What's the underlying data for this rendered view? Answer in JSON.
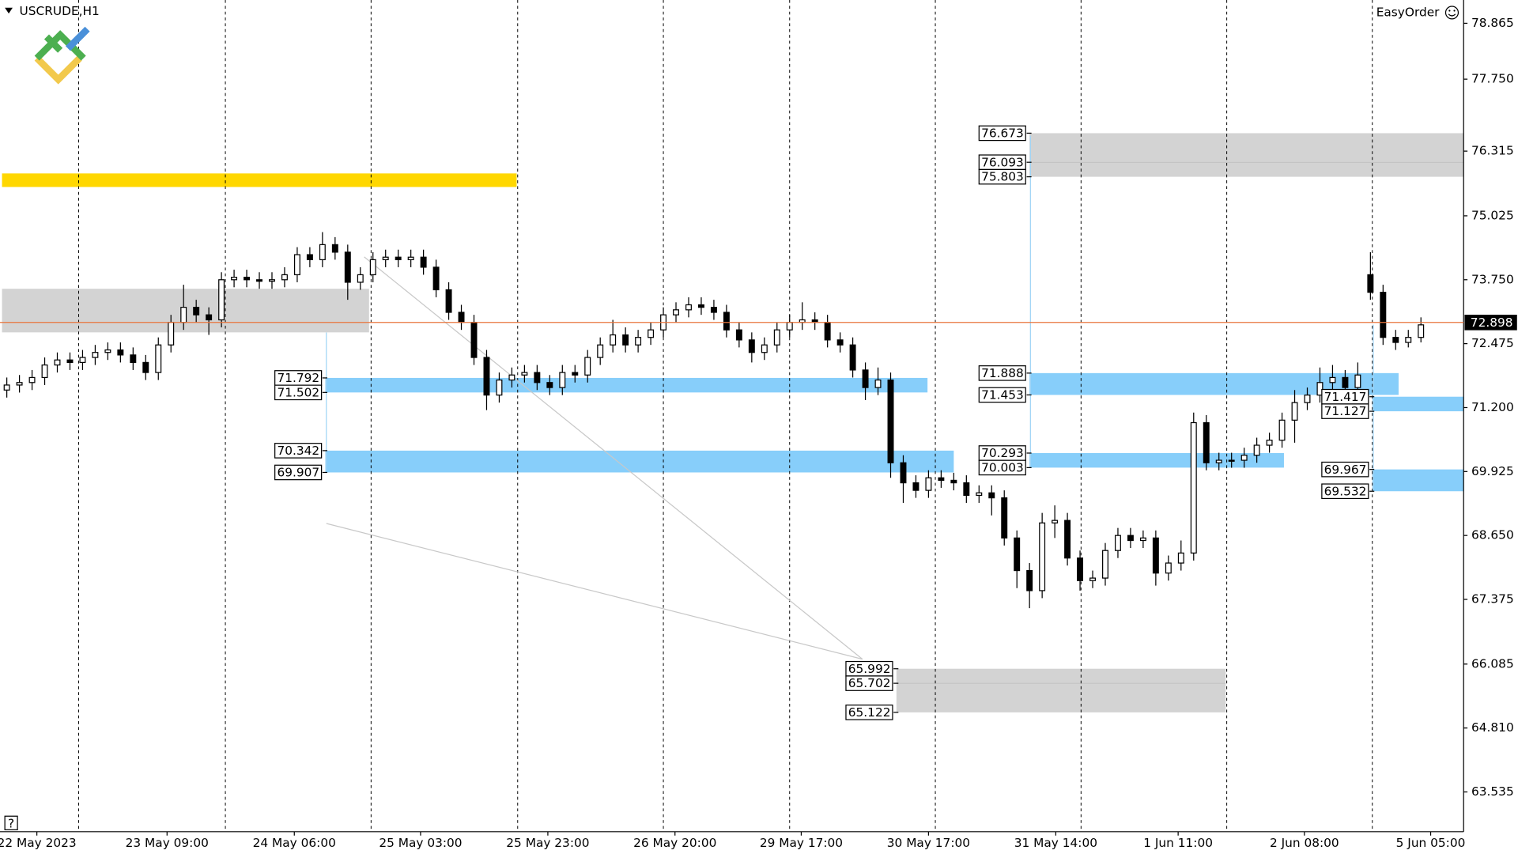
{
  "chart_data": {
    "type": "candlestick",
    "title": "USCRUDE,H1",
    "brand": "EasyOrder",
    "ylim": [
      62.742,
      79.329
    ],
    "yticks": [
      78.865,
      {
        "value": 77.75,
        "label": "77.750"
      },
      76.315,
      75.025,
      {
        "value": 73.75,
        "label": "73.750"
      },
      72.475,
      {
        "value": 71.2,
        "label": "71.200"
      },
      69.925,
      {
        "value": 68.65,
        "label": "68.650"
      },
      67.375,
      66.085,
      {
        "value": 64.81,
        "label": "64.810"
      },
      63.535
    ],
    "xlim": [
      -0.54,
      115.38
    ],
    "xticks": [
      {
        "value": 2.38,
        "label": "22 May 2023"
      },
      {
        "value": 12.69,
        "label": "23 May 09:00"
      },
      {
        "value": 22.77,
        "label": "24 May 06:00"
      },
      {
        "value": 32.77,
        "label": "25 May 03:00"
      },
      {
        "value": 42.85,
        "label": "25 May 23:00"
      },
      {
        "value": 52.92,
        "label": "26 May 20:00"
      },
      {
        "value": 62.92,
        "label": "29 May 17:00"
      },
      {
        "value": 73.0,
        "label": "30 May 17:00"
      },
      {
        "value": 83.08,
        "label": "31 May 14:00"
      },
      {
        "value": 92.77,
        "label": "1 Jun 11:00"
      },
      {
        "value": 102.77,
        "label": "2 Jun 08:00"
      },
      {
        "value": 112.77,
        "label": "5 Jun 05:00"
      }
    ],
    "day_separators": [
      5.69,
      17.31,
      28.85,
      40.46,
      52.0,
      62.0,
      73.54,
      85.08,
      96.62,
      108.15
    ],
    "x": [
      0,
      1,
      2,
      3,
      4,
      5,
      6,
      7,
      8,
      9,
      10,
      11,
      12,
      13,
      14,
      15,
      16,
      17,
      18,
      19,
      20,
      21,
      22,
      23,
      24,
      25,
      26,
      27,
      28,
      29,
      30,
      31,
      32,
      33,
      34,
      35,
      36,
      37,
      38,
      39,
      40,
      41,
      42,
      43,
      44,
      45,
      46,
      47,
      48,
      49,
      50,
      51,
      52,
      53,
      54,
      55,
      56,
      57,
      58,
      59,
      60,
      61,
      62,
      63,
      64,
      65,
      66,
      67,
      68,
      69,
      70,
      71,
      72,
      73,
      74,
      75,
      76,
      77,
      78,
      79,
      80,
      81,
      82,
      83,
      84,
      85,
      86,
      87,
      88,
      89,
      90,
      91,
      92,
      93,
      94,
      95,
      96,
      97,
      98,
      99,
      100,
      101,
      102,
      103,
      104,
      105,
      106,
      107,
      108,
      109,
      110,
      111,
      112
    ],
    "open": [
      71.55,
      71.65,
      71.7,
      71.8,
      72.05,
      72.15,
      72.1,
      72.2,
      72.3,
      72.35,
      72.25,
      72.1,
      71.9,
      72.45,
      72.9,
      73.2,
      73.05,
      72.95,
      73.75,
      73.8,
      73.75,
      73.72,
      73.75,
      73.85,
      74.25,
      74.15,
      74.45,
      74.3,
      73.7,
      73.85,
      74.15,
      74.2,
      74.15,
      74.2,
      74.0,
      73.55,
      73.1,
      72.9,
      72.2,
      71.45,
      71.75,
      71.85,
      71.9,
      71.7,
      71.6,
      71.9,
      71.85,
      72.2,
      72.45,
      72.65,
      72.45,
      72.6,
      72.75,
      73.05,
      73.15,
      73.25,
      73.2,
      73.1,
      72.75,
      72.55,
      72.3,
      72.45,
      72.75,
      72.9,
      72.95,
      72.9,
      72.55,
      72.45,
      71.95,
      71.6,
      71.75,
      70.1,
      69.7,
      69.55,
      69.8,
      69.75,
      69.7,
      69.45,
      69.5,
      69.4,
      68.6,
      67.95,
      67.55,
      68.9,
      68.95,
      68.2,
      67.75,
      67.8,
      68.35,
      68.65,
      68.55,
      68.6,
      67.9,
      68.1,
      68.3,
      70.9,
      70.1,
      70.15,
      70.15,
      70.25,
      70.45,
      70.55,
      70.95,
      71.3,
      71.45,
      71.7,
      71.8,
      71.6,
      73.85,
      73.5,
      72.6,
      72.5,
      72.6
    ],
    "high": [
      71.8,
      71.85,
      71.95,
      72.2,
      72.3,
      72.3,
      72.35,
      72.45,
      72.5,
      72.5,
      72.4,
      72.25,
      72.6,
      73.05,
      73.65,
      73.35,
      73.2,
      73.9,
      73.95,
      73.95,
      73.9,
      73.9,
      74.0,
      74.4,
      74.4,
      74.7,
      74.6,
      74.45,
      74.0,
      74.3,
      74.35,
      74.35,
      74.35,
      74.35,
      74.15,
      73.7,
      73.25,
      73.05,
      72.35,
      71.9,
      72.0,
      72.05,
      72.05,
      71.85,
      72.05,
      72.05,
      72.35,
      72.6,
      72.95,
      72.8,
      72.75,
      72.9,
      73.2,
      73.3,
      73.4,
      73.4,
      73.35,
      73.25,
      72.9,
      72.7,
      72.6,
      72.9,
      73.05,
      73.3,
      73.1,
      73.05,
      72.7,
      72.6,
      72.1,
      72.0,
      71.9,
      70.25,
      69.85,
      69.95,
      69.95,
      69.9,
      69.85,
      69.65,
      69.65,
      69.55,
      68.75,
      68.1,
      69.1,
      69.25,
      69.1,
      68.35,
      67.95,
      68.5,
      68.8,
      68.8,
      68.75,
      68.75,
      68.25,
      68.55,
      71.1,
      71.05,
      70.3,
      70.3,
      70.4,
      70.6,
      70.7,
      71.1,
      71.55,
      71.6,
      72.0,
      72.05,
      71.95,
      72.1,
      74.3,
      73.65,
      72.75,
      72.75,
      73.0
    ],
    "low": [
      71.4,
      71.5,
      71.55,
      71.65,
      71.9,
      71.95,
      71.95,
      72.05,
      72.15,
      72.1,
      71.95,
      71.75,
      71.75,
      72.3,
      72.75,
      72.9,
      72.65,
      72.8,
      73.6,
      73.6,
      73.57,
      73.57,
      73.6,
      73.7,
      74.0,
      74.0,
      74.15,
      73.35,
      73.55,
      73.7,
      74.0,
      74.0,
      74.0,
      73.85,
      73.4,
      72.95,
      72.75,
      72.05,
      71.15,
      71.3,
      71.6,
      71.7,
      71.55,
      71.45,
      71.45,
      71.7,
      71.7,
      72.05,
      72.3,
      72.3,
      72.3,
      72.45,
      72.6,
      72.9,
      73.0,
      73.05,
      72.95,
      72.6,
      72.4,
      72.1,
      72.15,
      72.3,
      72.6,
      72.75,
      72.75,
      72.4,
      72.3,
      71.8,
      71.35,
      71.45,
      69.8,
      69.3,
      69.4,
      69.4,
      69.6,
      69.55,
      69.3,
      69.3,
      69.05,
      68.45,
      67.6,
      67.2,
      67.4,
      68.6,
      68.05,
      67.55,
      67.6,
      67.65,
      68.2,
      68.4,
      68.4,
      67.65,
      67.75,
      67.95,
      68.15,
      69.95,
      69.95,
      70.0,
      70.0,
      70.1,
      70.3,
      70.4,
      70.5,
      71.15,
      71.3,
      71.55,
      71.45,
      71.45,
      73.35,
      72.45,
      72.35,
      72.4,
      72.5
    ],
    "close": [
      71.65,
      71.7,
      71.8,
      72.05,
      72.15,
      72.1,
      72.2,
      72.3,
      72.35,
      72.25,
      72.1,
      71.9,
      72.45,
      72.9,
      73.2,
      73.05,
      72.95,
      73.75,
      73.8,
      73.75,
      73.72,
      73.75,
      73.85,
      74.25,
      74.15,
      74.45,
      74.3,
      73.7,
      73.85,
      74.15,
      74.2,
      74.15,
      74.2,
      74.0,
      73.55,
      73.1,
      72.9,
      72.2,
      71.45,
      71.75,
      71.85,
      71.9,
      71.7,
      71.6,
      71.9,
      71.85,
      72.2,
      72.45,
      72.65,
      72.45,
      72.6,
      72.75,
      73.05,
      73.15,
      73.25,
      73.2,
      73.1,
      72.75,
      72.55,
      72.3,
      72.45,
      72.75,
      72.9,
      72.95,
      72.9,
      72.55,
      72.45,
      71.95,
      71.6,
      71.75,
      70.1,
      69.7,
      69.55,
      69.8,
      69.75,
      69.7,
      69.45,
      69.5,
      69.4,
      68.6,
      67.95,
      67.55,
      68.9,
      68.95,
      68.2,
      67.75,
      67.8,
      68.35,
      68.65,
      68.55,
      68.6,
      67.9,
      68.1,
      68.3,
      70.9,
      70.1,
      70.15,
      70.15,
      70.25,
      70.45,
      70.55,
      70.95,
      71.3,
      71.45,
      71.7,
      71.8,
      71.6,
      71.85,
      73.5,
      72.6,
      72.5,
      72.6,
      72.85
    ],
    "last_price": 72.898,
    "last_price_color": "#e8743b",
    "bands": [
      {
        "low": 75.6,
        "high": 75.87,
        "x": [
          -0.38,
          40.38
        ],
        "color": "#ffd700"
      },
      {
        "low": 72.7,
        "high": 73.57,
        "x": [
          -0.38,
          28.69
        ],
        "color": "#d3d3d3"
      }
    ],
    "zones": [
      {
        "levels": [
          71.792,
          71.502
        ],
        "x": [
          25.23,
          72.92
        ],
        "color": "#87cefa"
      },
      {
        "levels": [
          70.342,
          69.907
        ],
        "x": [
          25.23,
          75.0
        ],
        "color": "#87cefa"
      },
      {
        "levels": [
          76.673,
          76.093,
          75.803
        ],
        "x": [
          81.0,
          115.38
        ],
        "color": "#d3d3d3"
      },
      {
        "levels": [
          71.888,
          71.453
        ],
        "x": [
          81.0,
          110.23
        ],
        "color": "#87cefa"
      },
      {
        "levels": [
          70.293,
          70.003
        ],
        "x": [
          81.0,
          101.15
        ],
        "color": "#87cefa"
      },
      {
        "levels": [
          71.417,
          71.127
        ],
        "x": [
          108.15,
          115.38
        ],
        "color": "#87cefa"
      },
      {
        "levels": [
          69.967,
          69.532
        ],
        "x": [
          108.15,
          115.38
        ],
        "color": "#87cefa"
      },
      {
        "levels": [
          65.992,
          65.702,
          65.122
        ],
        "x": [
          70.46,
          96.54
        ],
        "color": "#d3d3d3"
      }
    ]
  }
}
